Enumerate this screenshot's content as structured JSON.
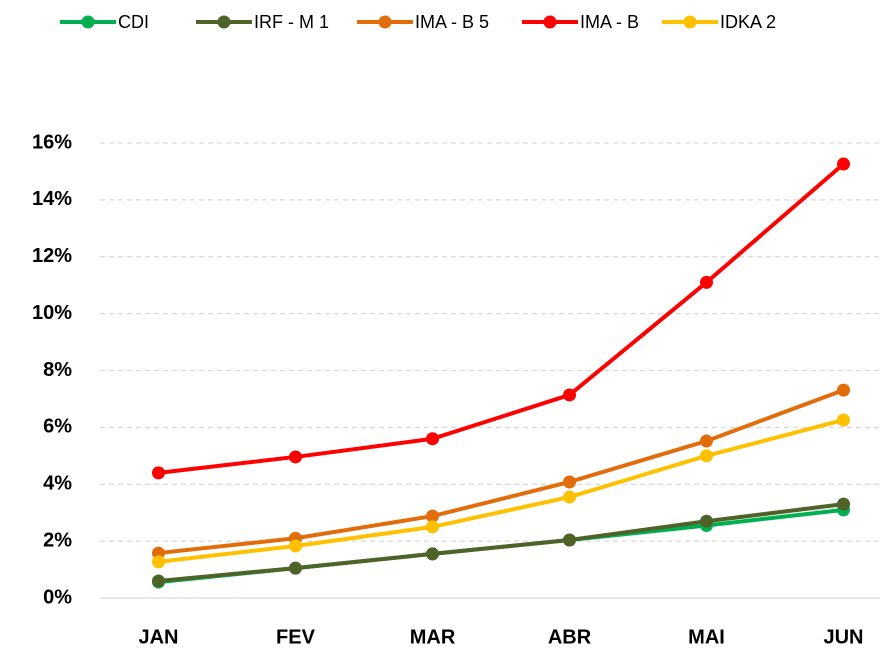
{
  "chart_data": {
    "type": "line",
    "categories": [
      "JAN",
      "FEV",
      "MAR",
      "ABR",
      "MAI",
      "JUN"
    ],
    "series": [
      {
        "name": "CDI",
        "color": "#00b050",
        "values": [
          0.56,
          1.05,
          1.55,
          2.04,
          2.55,
          3.1
        ]
      },
      {
        "name": "IRF - M 1",
        "color": "#4f6228",
        "values": [
          0.6,
          1.05,
          1.55,
          2.04,
          2.7,
          3.3
        ]
      },
      {
        "name": "IMA - B 5",
        "color": "#e36c0a",
        "values": [
          1.58,
          2.1,
          2.88,
          4.08,
          5.52,
          7.31
        ]
      },
      {
        "name": "IMA - B",
        "color": "#ff0000",
        "values": [
          4.4,
          4.96,
          5.6,
          7.14,
          11.1,
          15.26
        ]
      },
      {
        "name": "IDKA 2",
        "color": "#ffc000",
        "values": [
          1.27,
          1.83,
          2.5,
          3.55,
          5.0,
          6.26
        ]
      }
    ],
    "ylim": [
      0,
      16
    ],
    "yticks": [
      {
        "value": 0,
        "label": "0%"
      },
      {
        "value": 2,
        "label": "2%"
      },
      {
        "value": 4,
        "label": "4%"
      },
      {
        "value": 6,
        "label": "6%"
      },
      {
        "value": 8,
        "label": "8%"
      },
      {
        "value": 10,
        "label": "10%"
      },
      {
        "value": 12,
        "label": "12%"
      },
      {
        "value": 14,
        "label": "14%"
      },
      {
        "value": 16,
        "label": "16%"
      }
    ],
    "grid": true,
    "legend": "top"
  }
}
